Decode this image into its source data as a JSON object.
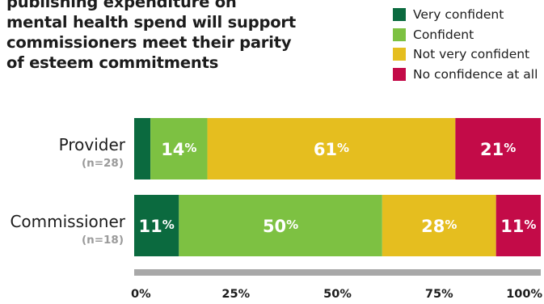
{
  "title_lines": [
    "publishing expenditure on",
    "mental health spend will support",
    "commissioners meet their parity",
    "of esteem commitments"
  ],
  "chart_data": {
    "type": "bar",
    "orientation": "horizontal",
    "stacked": true,
    "percent_scale": true,
    "categories": [
      {
        "label": "Provider",
        "n": "(n=28)"
      },
      {
        "label": "Commissioner",
        "n": "(n=18)"
      }
    ],
    "series": [
      {
        "name": "Very confident",
        "color": "#0b6a3f",
        "values": [
          4,
          11
        ],
        "labels": [
          "",
          "11%"
        ]
      },
      {
        "name": "Confident",
        "color": "#7dc142",
        "values": [
          14,
          50
        ],
        "labels": [
          "14%",
          "50%"
        ]
      },
      {
        "name": "Not very confident",
        "color": "#e5be1f",
        "values": [
          61,
          28
        ],
        "labels": [
          "61%",
          "28%"
        ]
      },
      {
        "name": "No confidence at all",
        "color": "#c30b48",
        "values": [
          21,
          11
        ],
        "labels": [
          "21%",
          "11%"
        ]
      }
    ],
    "xlim": [
      0,
      100
    ],
    "xticks": [
      "0%",
      "25%",
      "50%",
      "75%",
      "100%"
    ],
    "legend_position": "top-right",
    "grid": false
  }
}
